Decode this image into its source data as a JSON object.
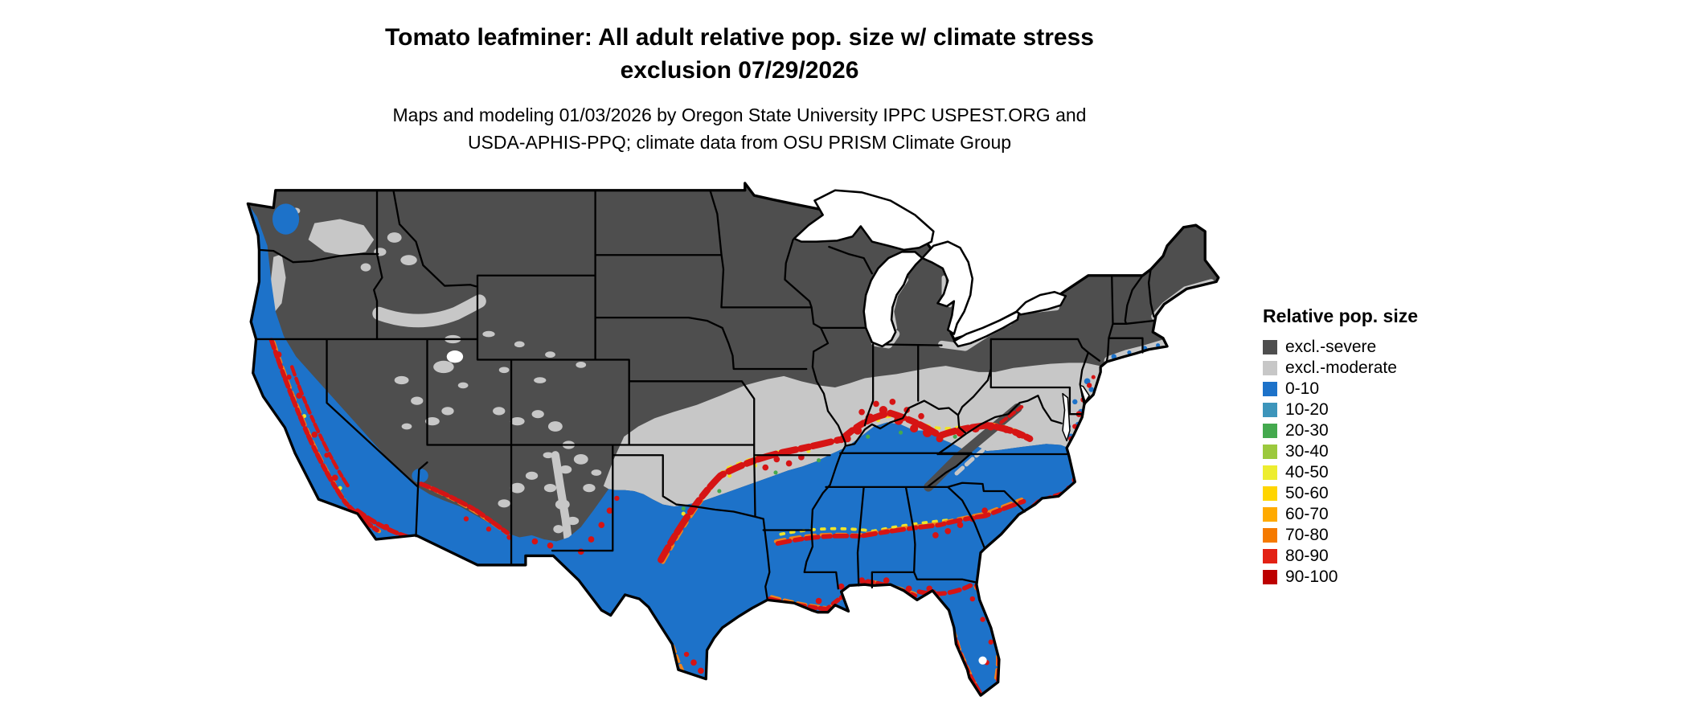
{
  "title": {
    "line1": "Tomato leafminer: All adult relative pop. size w/ climate stress",
    "line2": "exclusion 07/29/2026"
  },
  "subtitle": {
    "line1": "Maps and modeling 01/03/2026 by Oregon State University IPPC USPEST.ORG and",
    "line2": "USDA-APHIS-PPQ; climate data from OSU PRISM Climate Group"
  },
  "legend": {
    "title": "Relative pop. size",
    "items": [
      {
        "label": "excl.-severe",
        "color": "#4e4e4e"
      },
      {
        "label": "excl.-moderate",
        "color": "#c7c7c7"
      },
      {
        "label": "0-10",
        "color": "#1d72c9"
      },
      {
        "label": "10-20",
        "color": "#3d95bb"
      },
      {
        "label": "20-30",
        "color": "#44a94e"
      },
      {
        "label": "30-40",
        "color": "#9cc93d"
      },
      {
        "label": "40-50",
        "color": "#eded2f"
      },
      {
        "label": "50-60",
        "color": "#ffd500"
      },
      {
        "label": "60-70",
        "color": "#ffaa00"
      },
      {
        "label": "70-80",
        "color": "#f57a00"
      },
      {
        "label": "80-90",
        "color": "#e32114"
      },
      {
        "label": "90-100",
        "color": "#bd0000"
      }
    ]
  },
  "map": {
    "region": "Continental United States",
    "colors": {
      "excl_severe": "#4e4e4e",
      "excl_moderate": "#c7c7c7",
      "pop_0_10": "#1d72c9",
      "green": "#44a94e",
      "hot_yellow": "#efe42a",
      "hot_orange": "#f0841c",
      "hot_red": "#d61414",
      "water": "#ffffff",
      "border": "#000000"
    }
  }
}
